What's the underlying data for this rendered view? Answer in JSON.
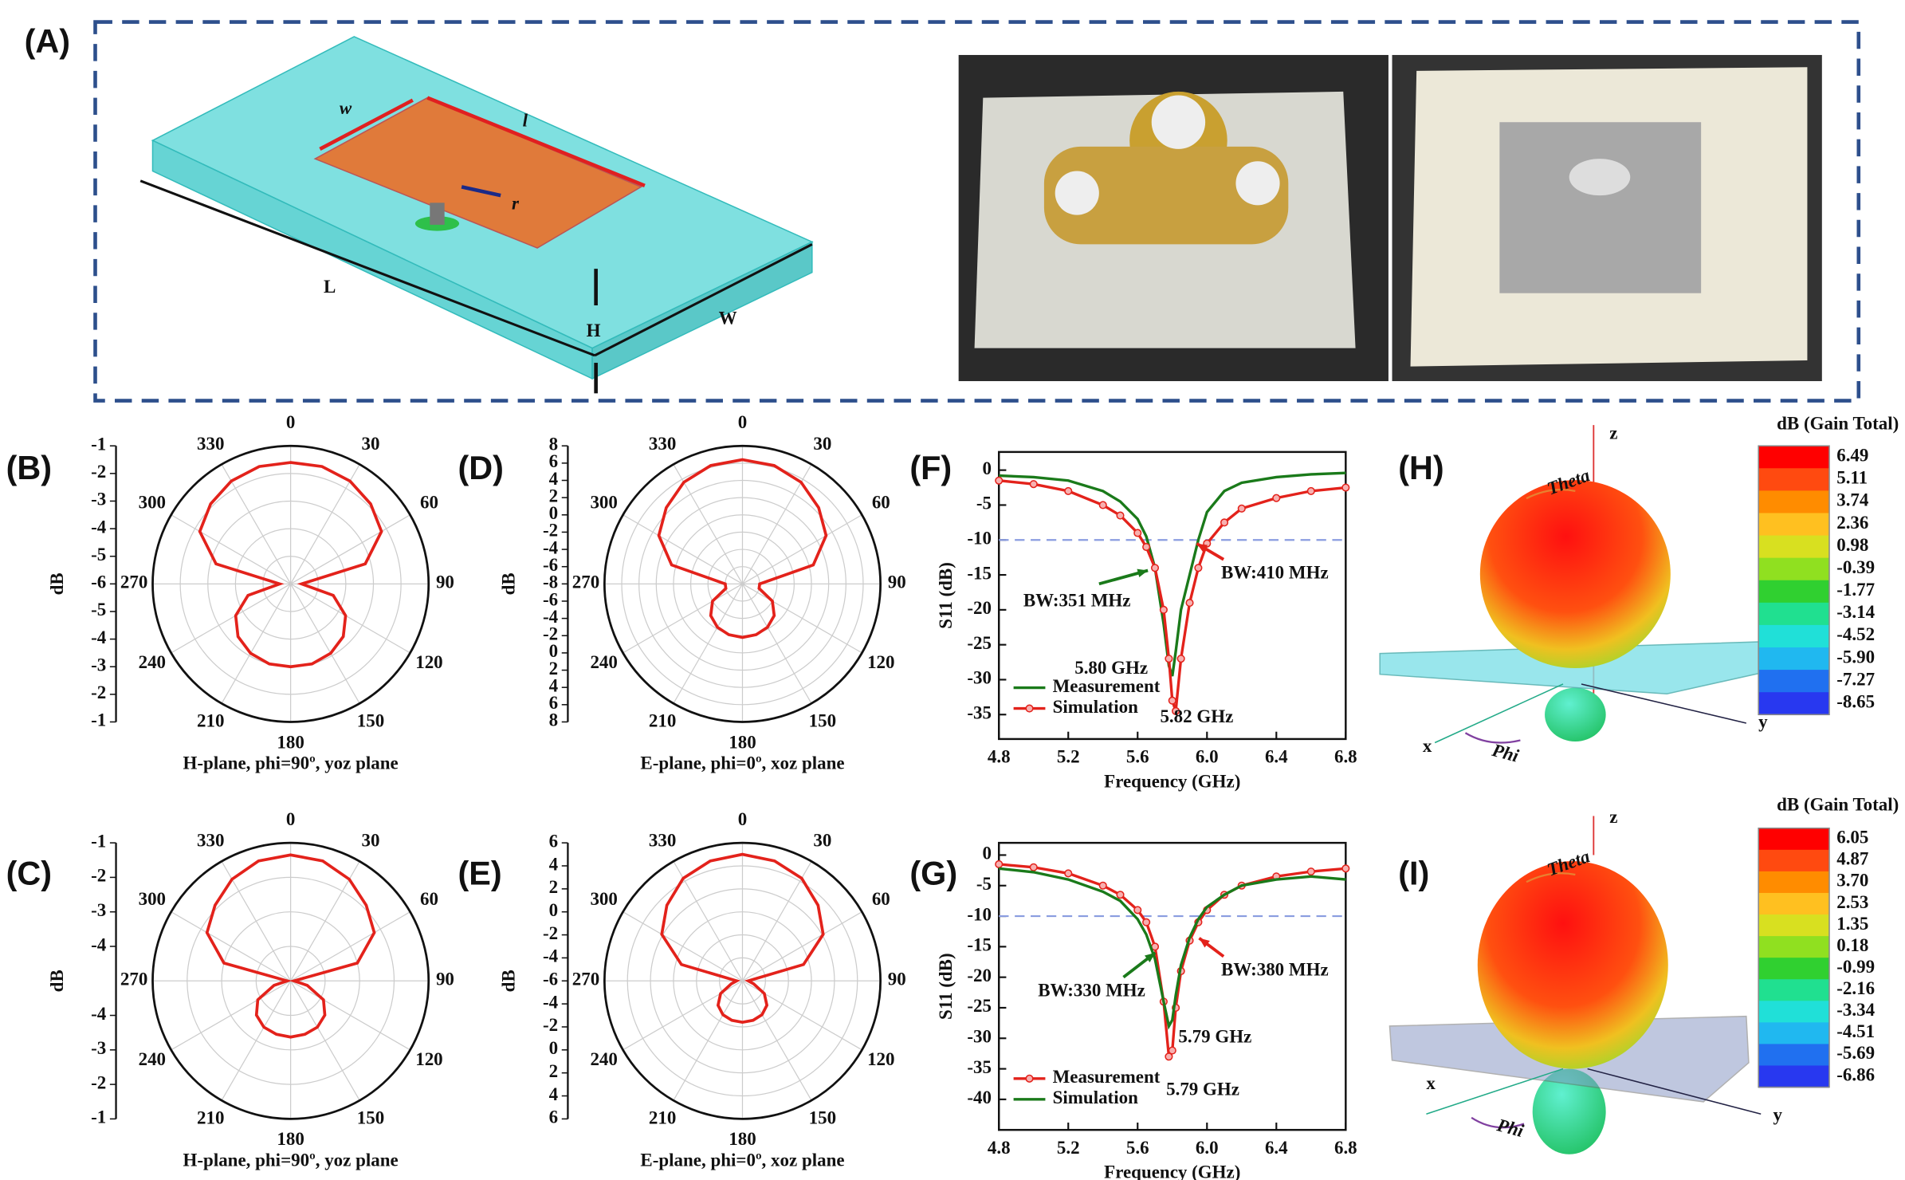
{
  "panel_a": {
    "label": "(A)",
    "dimensions": [
      "w",
      "l",
      "r",
      "L",
      "W",
      "H"
    ]
  },
  "chart_data": [
    {
      "type": "polar",
      "panel": "(B)",
      "caption": "H-plane, phi=90º, yoz plane",
      "r_label": "dB",
      "rlim": [
        -6,
        -1
      ],
      "rticks": [
        -1,
        -2,
        -3,
        -4,
        -5,
        -6
      ],
      "angle_ticks": [
        0,
        30,
        60,
        90,
        120,
        150,
        180,
        210,
        240,
        270,
        300,
        330
      ],
      "theta": [
        0,
        15,
        30,
        45,
        60,
        75,
        90,
        105,
        120,
        135,
        150,
        165,
        180,
        195,
        210,
        225,
        240,
        255,
        270,
        285,
        300,
        315,
        330,
        345
      ],
      "series": [
        {
          "color": "#e3221b",
          "values": [
            -1.6,
            -1.6,
            -1.7,
            -1.9,
            -2.2,
            -3.2,
            -5.6,
            -4.4,
            -3.7,
            -3.3,
            -3.1,
            -3.0,
            -3.0,
            -3.0,
            -3.1,
            -3.3,
            -3.7,
            -4.4,
            -5.6,
            -3.2,
            -2.2,
            -1.9,
            -1.7,
            -1.6
          ]
        }
      ]
    },
    {
      "type": "polar",
      "panel": "(D)",
      "caption": "E-plane, phi=0º, xoz plane",
      "r_label": "dB",
      "rlim": [
        -8,
        8
      ],
      "rticks": [
        8,
        6,
        4,
        2,
        0,
        -2,
        -4,
        -6,
        -8
      ],
      "angle_ticks": [
        0,
        30,
        60,
        90,
        120,
        150,
        180,
        210,
        240,
        270,
        300,
        330
      ],
      "theta": [
        0,
        15,
        30,
        45,
        60,
        75,
        90,
        105,
        120,
        135,
        150,
        165,
        180,
        195,
        210,
        225,
        240,
        255,
        270,
        285,
        300,
        315,
        330,
        345
      ],
      "series": [
        {
          "color": "#e3221b",
          "values": [
            6.4,
            6.2,
            5.6,
            4.5,
            3.2,
            0.5,
            -6,
            -6,
            -4,
            -2.8,
            -2.2,
            -1.9,
            -1.8,
            -1.9,
            -2.2,
            -2.8,
            -4,
            -6,
            -6,
            0.5,
            3.2,
            4.5,
            5.6,
            6.2
          ]
        }
      ]
    },
    {
      "type": "line",
      "panel": "(F)",
      "xlabel": "Frequency (GHz)",
      "ylabel": "S11 (dB)",
      "x": [
        4.8,
        5.0,
        5.2,
        5.4,
        5.5,
        5.6,
        5.65,
        5.7,
        5.75,
        5.78,
        5.8,
        5.82,
        5.85,
        5.9,
        5.95,
        6.0,
        6.1,
        6.2,
        6.4,
        6.6,
        6.8
      ],
      "xlim": [
        4.8,
        6.8
      ],
      "xticks": [
        4.8,
        5.2,
        5.6,
        {
          "value": 6,
          "label": "6.0"
        },
        6.4,
        6.8
      ],
      "ylim": [
        -38.5,
        2.6
      ],
      "yticks": [
        0,
        -5,
        -10,
        -15,
        -20,
        -25,
        -30,
        -35
      ],
      "reference_line": -10,
      "legend": "lower left",
      "series": [
        {
          "name": "Measurement",
          "color": "#1a7a1a",
          "values": [
            -0.8,
            -1.0,
            -1.5,
            -3,
            -4.5,
            -7,
            -9.5,
            -14,
            -22,
            -28,
            -29.5,
            -26,
            -20,
            -15,
            -10,
            -6,
            -3,
            -1.8,
            -1,
            -0.6,
            -0.4
          ]
        },
        {
          "name": "Simulation",
          "color": "#e3221b",
          "marker": "circle",
          "values": [
            -1.5,
            -2,
            -3,
            -5,
            -6.5,
            -9,
            -11,
            -14,
            -20,
            -27,
            -33,
            -34.5,
            -27,
            -19,
            -14,
            -10.5,
            -7.5,
            -5.5,
            -4,
            -3,
            -2.5
          ]
        }
      ],
      "annotations": [
        {
          "text": "BW:351 MHz",
          "color": "#1a7a1a"
        },
        {
          "text": "5.80 GHz",
          "color": "#1a7a1a"
        },
        {
          "text": "BW:410 MHz",
          "color": "#e3221b"
        },
        {
          "text": "5.82 GHz",
          "color": "#e3221b"
        }
      ]
    },
    {
      "type": "polar",
      "panel": "(C)",
      "caption": "H-plane, phi=90º, yoz plane",
      "r_label": "dB",
      "rlim": [
        -5,
        -1
      ],
      "rticks": [
        -1,
        -2,
        -3,
        -4
      ],
      "angle_ticks": [
        0,
        30,
        60,
        90,
        120,
        150,
        180,
        210,
        240,
        270,
        300,
        330
      ],
      "theta": [
        0,
        15,
        30,
        45,
        60,
        75,
        90,
        105,
        120,
        135,
        150,
        165,
        180,
        195,
        210,
        225,
        240,
        255,
        270,
        285,
        300,
        315,
        330,
        345
      ],
      "series": [
        {
          "color": "#e3221b",
          "values": [
            -1.35,
            -1.4,
            -1.6,
            -1.9,
            -2.2,
            -3.0,
            -4.9,
            -4.5,
            -3.9,
            -3.6,
            -3.45,
            -3.4,
            -3.37,
            -3.4,
            -3.45,
            -3.6,
            -3.9,
            -4.5,
            -4.9,
            -3.0,
            -2.2,
            -1.9,
            -1.6,
            -1.4
          ]
        }
      ]
    },
    {
      "type": "polar",
      "panel": "(E)",
      "caption": "E-plane, phi=0º, xoz plane",
      "r_label": "dB",
      "rlim": [
        -6,
        6
      ],
      "rticks": [
        6,
        4,
        2,
        0,
        -2,
        -4,
        -6
      ],
      "angle_ticks": [
        0,
        30,
        60,
        90,
        120,
        150,
        180,
        210,
        240,
        270,
        300,
        330
      ],
      "theta": [
        0,
        15,
        30,
        45,
        60,
        75,
        90,
        105,
        120,
        135,
        150,
        165,
        180,
        195,
        210,
        225,
        240,
        255,
        270,
        285,
        300,
        315,
        330,
        345
      ],
      "series": [
        {
          "color": "#e3221b",
          "values": [
            5.0,
            4.8,
            4.3,
            3.3,
            2.1,
            -0.5,
            -5.5,
            -5,
            -3.8,
            -3.0,
            -2.6,
            -2.45,
            -2.4,
            -2.45,
            -2.6,
            -3.0,
            -3.8,
            -5,
            -5.5,
            -0.5,
            2.1,
            3.3,
            4.3,
            4.8
          ]
        }
      ]
    },
    {
      "type": "line",
      "panel": "(G)",
      "xlabel": "Frequency (GHz)",
      "ylabel": "S11 (dB)",
      "x": [
        4.8,
        5.0,
        5.2,
        5.4,
        5.5,
        5.6,
        5.65,
        5.7,
        5.75,
        5.78,
        5.8,
        5.82,
        5.85,
        5.9,
        5.95,
        6.0,
        6.1,
        6.2,
        6.4,
        6.6,
        6.8
      ],
      "xlim": [
        4.8,
        6.8
      ],
      "xticks": [
        4.8,
        5.2,
        5.6,
        {
          "value": 6,
          "label": "6.0"
        },
        6.4,
        6.8
      ],
      "ylim": [
        -45,
        2
      ],
      "yticks": [
        0,
        -5,
        -10,
        -15,
        -20,
        -25,
        -30,
        -35,
        -40
      ],
      "reference_line": -10,
      "legend": "lower left",
      "series": [
        {
          "name": "Measurement",
          "color": "#e3221b",
          "marker": "circle",
          "values": [
            -1.5,
            -2,
            -3,
            -5,
            -6.5,
            -9,
            -11,
            -15,
            -24,
            -33,
            -32,
            -25,
            -19,
            -14,
            -11,
            -9,
            -6.5,
            -5,
            -3.5,
            -2.7,
            -2.2
          ]
        },
        {
          "name": "Simulation",
          "color": "#1a7a1a",
          "values": [
            -2.2,
            -2.8,
            -4,
            -6,
            -7.5,
            -10.5,
            -13,
            -17,
            -24,
            -28,
            -27,
            -23,
            -18,
            -13.5,
            -10.5,
            -8.5,
            -6.5,
            -5,
            -4,
            -3.5,
            -4
          ]
        }
      ],
      "annotations": [
        {
          "text": "BW:330 MHz",
          "color": "#1a7a1a"
        },
        {
          "text": "5.79 GHz",
          "color": "#1a7a1a"
        },
        {
          "text": "BW:380 MHz",
          "color": "#e3221b"
        },
        {
          "text": "5.79 GHz",
          "color": "#e3221b"
        }
      ]
    }
  ],
  "panel_h": {
    "label": "(H)",
    "colorbar_title": "dB (Gain Total)",
    "colorbar_ticks": [
      "6.49",
      "5.11",
      "3.74",
      "2.36",
      "0.98",
      "-0.39",
      "-1.77",
      "-3.14",
      "-4.52",
      "-5.90",
      "-7.27",
      "-8.65"
    ],
    "axes": [
      "z",
      "y",
      "x"
    ],
    "angles": [
      "Theta",
      "Phi"
    ]
  },
  "panel_i": {
    "label": "(I)",
    "colorbar_title": "dB (Gain Total)",
    "colorbar_ticks": [
      "6.05",
      "4.87",
      "3.70",
      "2.53",
      "1.35",
      "0.18",
      "-0.99",
      "-2.16",
      "-3.34",
      "-4.51",
      "-5.69",
      "-6.86"
    ],
    "axes": [
      "z",
      "y",
      "x"
    ],
    "angles": [
      "Theta",
      "Phi"
    ]
  }
}
